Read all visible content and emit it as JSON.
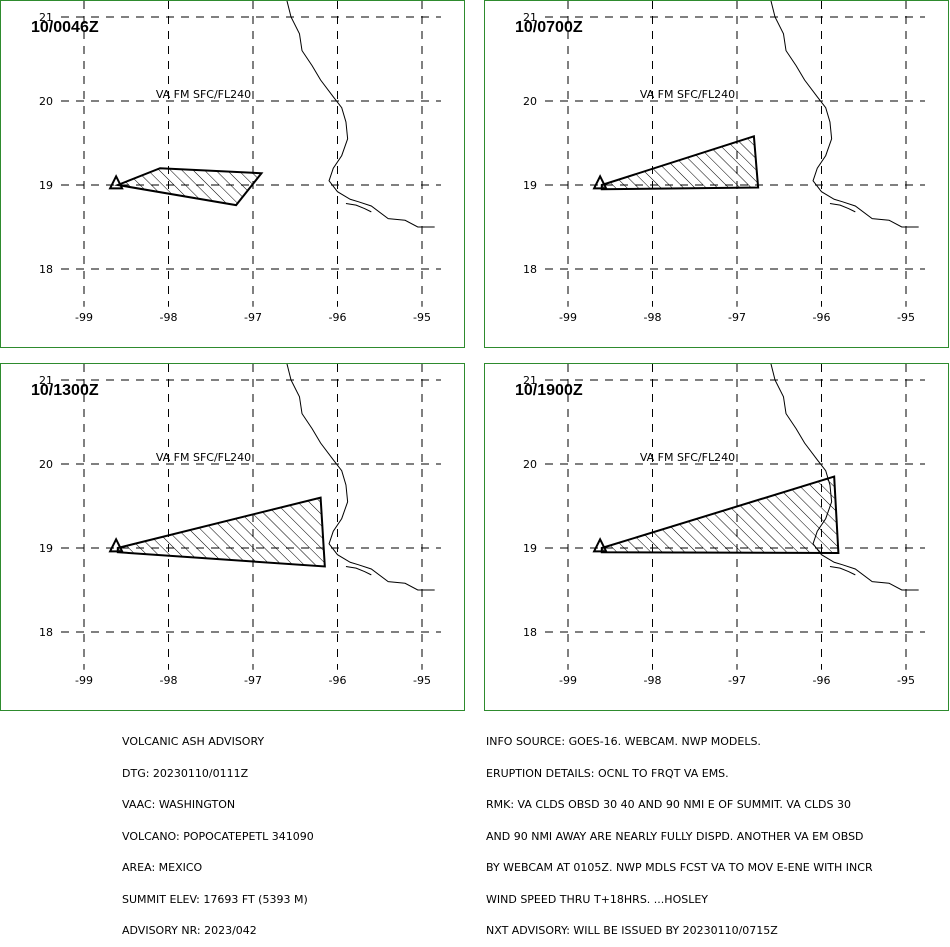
{
  "panels": [
    {
      "time": "10/0046Z",
      "label": "VA FM SFC/FL240",
      "polygon": [
        [
          -98.6,
          19.0
        ],
        [
          -98.1,
          19.2
        ],
        [
          -96.9,
          19.14
        ],
        [
          -97.2,
          18.76
        ],
        [
          -98.6,
          19.0
        ]
      ]
    },
    {
      "time": "10/0700Z",
      "label": "VA FM SFC/FL240",
      "polygon": [
        [
          -98.6,
          19.0
        ],
        [
          -96.8,
          19.58
        ],
        [
          -96.75,
          18.97
        ],
        [
          -98.6,
          18.95
        ],
        [
          -98.6,
          19.0
        ]
      ]
    },
    {
      "time": "10/1300Z",
      "label": "VA FM SFC/FL240",
      "polygon": [
        [
          -98.6,
          19.0
        ],
        [
          -96.2,
          19.6
        ],
        [
          -96.15,
          18.78
        ],
        [
          -98.6,
          18.95
        ],
        [
          -98.6,
          19.0
        ]
      ]
    },
    {
      "time": "10/1900Z",
      "label": "VA FM SFC/FL240",
      "polygon": [
        [
          -98.6,
          19.0
        ],
        [
          -95.85,
          19.85
        ],
        [
          -95.8,
          18.94
        ],
        [
          -98.6,
          18.95
        ],
        [
          -98.6,
          19.0
        ]
      ]
    }
  ],
  "axes": {
    "lon_ticks": [
      "-99",
      "-98",
      "-97",
      "-96",
      "-95"
    ],
    "lat_ticks": [
      "21",
      "20",
      "19",
      "18"
    ]
  },
  "volcano": {
    "lon": -98.62,
    "lat": 19.02,
    "symbol": "triangle-icon"
  },
  "advisory_left": [
    "VOLCANIC ASH ADVISORY",
    "DTG: 20230110/0111Z",
    "VAAC: WASHINGTON",
    "VOLCANO: POPOCATEPETL 341090",
    "AREA: MEXICO",
    "SUMMIT ELEV: 17693 FT (5393 M)",
    "ADVISORY NR: 2023/042"
  ],
  "advisory_right": [
    "INFO SOURCE: GOES-16. WEBCAM. NWP MODELS.",
    "ERUPTION DETAILS: OCNL TO FRQT VA EMS.",
    "RMK: VA CLDS OBSD 30 40 AND 90 NMI E OF SUMMIT. VA CLDS 30",
    "AND 90 NMI AWAY ARE NEARLY FULLY DISPD. ANOTHER VA EM OBSD",
    "BY WEBCAM AT 0105Z. NWP MDLS FCST VA TO MOV E-ENE WITH INCR",
    "WIND SPEED THRU T+18HRS. ...HOSLEY",
    "NXT ADVISORY: WILL BE ISSUED BY 20230110/0715Z"
  ],
  "colors": {
    "panel_border": "#2e8b2e",
    "lines": "#000000"
  }
}
